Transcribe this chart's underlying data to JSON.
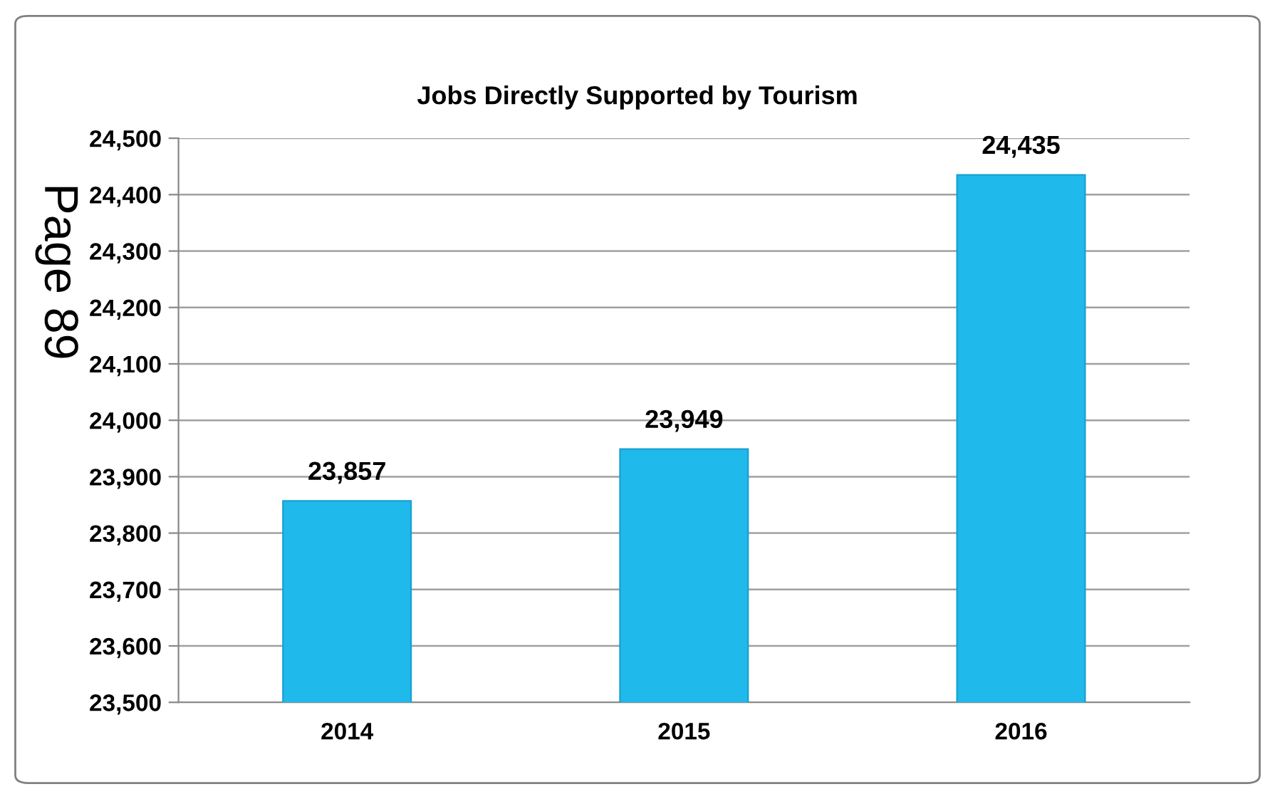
{
  "chart_data": {
    "type": "bar",
    "title": "Jobs Directly Supported by Tourism",
    "categories": [
      "2014",
      "2015",
      "2016"
    ],
    "values": [
      23857,
      23949,
      24435
    ],
    "color": "#1fb9ec",
    "ylim": [
      23500,
      24500
    ],
    "yticks": [
      {
        "value": 23500,
        "label": "23,500"
      },
      {
        "value": 23600,
        "label": "23,600"
      },
      {
        "value": 23700,
        "label": "23,700"
      },
      {
        "value": 23800,
        "label": "23,800"
      },
      {
        "value": 23900,
        "label": "23,900"
      },
      {
        "value": 24000,
        "label": "24,000"
      },
      {
        "value": 24100,
        "label": "24,100"
      },
      {
        "value": 24200,
        "label": "24,200"
      },
      {
        "value": 24300,
        "label": "24,300"
      },
      {
        "value": 24400,
        "label": "24,400"
      },
      {
        "value": 24500,
        "label": "24,500"
      }
    ],
    "grid": "y",
    "value_labels": [
      "23,857",
      "23,949",
      "24,435"
    ],
    "annotations": [
      "Page 89"
    ]
  }
}
